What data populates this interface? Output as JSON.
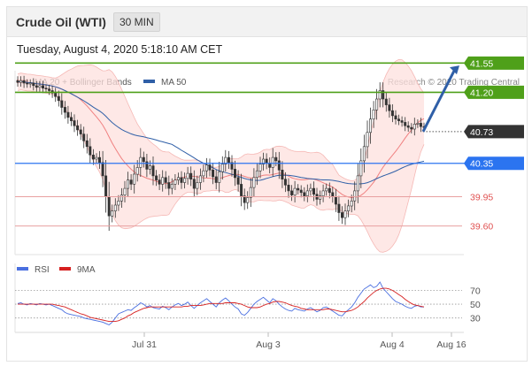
{
  "header": {
    "title": "Crude Oil (WTI)",
    "timeframe": "30 MIN"
  },
  "timestamp": "Tuesday, August 4, 2020 5:18:10 AM CET",
  "colors": {
    "ma20": "#f08080",
    "ma50": "#2f5fa7",
    "band_fill": "#fde0de",
    "resistance": "#4fa01a",
    "support_current": "#2b74f0",
    "support": "#e05252",
    "price_tag": "#333333",
    "candle": "#333333",
    "rsi": "#4a6fe0",
    "ma9": "#d62020",
    "arrow": "#2f5fa7"
  },
  "legend": [
    {
      "label": "MA 20 + Bollinger Bands",
      "color_key": "ma20"
    },
    {
      "label": "MA 50",
      "color_key": "ma50"
    }
  ],
  "credit": "Research © 2020 Trading Central",
  "rsi_legend": [
    {
      "label": "RSI",
      "color_key": "rsi"
    },
    {
      "label": "9MA",
      "color_key": "ma9"
    }
  ],
  "chart_data": {
    "type": "candlestick",
    "x_ticks": [
      "Jul 31",
      "Aug 3",
      "Aug 4",
      "Aug 16"
    ],
    "ylim": [
      39.1,
      41.67
    ],
    "levels": [
      {
        "label": "41.55",
        "value": 41.55,
        "kind": "resistance"
      },
      {
        "label": "41.20",
        "value": 41.2,
        "kind": "resistance"
      },
      {
        "label": "40.73",
        "value": 40.73,
        "kind": "current"
      },
      {
        "label": "40.35",
        "value": 40.35,
        "kind": "support_current"
      },
      {
        "label": "39.95",
        "value": 39.95,
        "kind": "support"
      },
      {
        "label": "39.60",
        "value": 39.6,
        "kind": "support"
      }
    ],
    "closes": [
      41.32,
      41.34,
      41.31,
      41.3,
      41.31,
      41.28,
      41.26,
      41.28,
      41.25,
      41.24,
      41.22,
      41.19,
      41.15,
      41.1,
      41.02,
      40.96,
      40.9,
      40.86,
      40.8,
      40.75,
      40.7,
      40.62,
      40.55,
      40.45,
      40.4,
      40.42,
      40.36,
      40.2,
      39.95,
      39.72,
      39.78,
      39.85,
      39.9,
      39.97,
      40.05,
      40.15,
      40.1,
      40.22,
      40.3,
      40.42,
      40.37,
      40.28,
      40.32,
      40.2,
      40.15,
      40.1,
      40.18,
      40.12,
      40.05,
      40.1,
      40.15,
      40.18,
      40.12,
      40.17,
      40.23,
      40.16,
      40.05,
      40.12,
      40.2,
      40.26,
      40.33,
      40.27,
      40.19,
      40.12,
      40.25,
      40.34,
      40.42,
      40.36,
      40.28,
      40.18,
      40.1,
      39.96,
      39.88,
      39.94,
      40.06,
      40.18,
      40.26,
      40.34,
      40.4,
      40.35,
      40.3,
      40.42,
      40.38,
      40.27,
      40.16,
      40.09,
      40.02,
      39.97,
      40.05,
      40.03,
      40.0,
      39.96,
      40.02,
      40.05,
      39.98,
      39.92,
      39.96,
      40.02,
      40.05,
      40.0,
      39.95,
      39.86,
      39.76,
      39.7,
      39.78,
      39.84,
      39.9,
      40.02,
      40.2,
      40.38,
      40.55,
      40.72,
      40.88,
      40.99,
      41.12,
      41.22,
      41.12,
      41.05,
      40.98,
      40.92,
      40.88,
      40.86,
      40.84,
      40.8,
      40.78,
      40.76,
      40.82,
      40.83,
      40.79,
      40.78
    ],
    "rsi": {
      "levels": [
        70,
        50,
        30
      ],
      "ylim": [
        14,
        86
      ],
      "rsi": [
        51,
        52,
        50,
        49,
        51,
        50,
        49,
        51,
        50,
        49,
        50,
        48,
        46,
        44,
        42,
        38,
        36,
        35,
        34,
        33,
        32,
        30,
        29,
        28,
        27,
        26,
        25,
        24,
        22,
        20,
        24,
        30,
        36,
        38,
        40,
        42,
        41,
        45,
        48,
        52,
        50,
        46,
        48,
        45,
        44,
        43,
        47,
        45,
        42,
        46,
        49,
        51,
        48,
        50,
        53,
        48,
        44,
        48,
        52,
        55,
        58,
        54,
        50,
        46,
        52,
        56,
        59,
        55,
        50,
        46,
        43,
        36,
        34,
        38,
        44,
        50,
        54,
        57,
        60,
        56,
        52,
        58,
        55,
        50,
        46,
        43,
        41,
        40,
        44,
        42,
        41,
        40,
        43,
        45,
        42,
        39,
        41,
        45,
        46,
        43,
        40,
        37,
        34,
        33,
        38,
        42,
        46,
        52,
        60,
        66,
        72,
        75,
        78,
        74,
        76,
        82,
        73,
        68,
        63,
        58,
        54,
        52,
        50,
        47,
        45,
        44,
        47,
        48,
        46,
        46
      ],
      "ma9": [
        50,
        50,
        50,
        50,
        50,
        50,
        50,
        50,
        50,
        50,
        50,
        50,
        49,
        48,
        47,
        46,
        44,
        42,
        40,
        38,
        36,
        35,
        33,
        31,
        30,
        29,
        28,
        27,
        26,
        25,
        25,
        25,
        26,
        28,
        30,
        33,
        35,
        38,
        40,
        42,
        44,
        45,
        46,
        46,
        46,
        46,
        46,
        46,
        46,
        46,
        46,
        46,
        46,
        47,
        47,
        48,
        48,
        48,
        48,
        49,
        50,
        51,
        51,
        51,
        51,
        51,
        52,
        52,
        52,
        52,
        51,
        50,
        48,
        46,
        45,
        45,
        45,
        46,
        48,
        50,
        51,
        53,
        54,
        54,
        53,
        52,
        50,
        48,
        47,
        46,
        44,
        43,
        42,
        42,
        42,
        42,
        42,
        42,
        43,
        43,
        42,
        41,
        40,
        39,
        39,
        40,
        41,
        43,
        46,
        50,
        54,
        59,
        63,
        67,
        70,
        72,
        73,
        73,
        72,
        70,
        67,
        64,
        61,
        57,
        54,
        51,
        49,
        48,
        47,
        46
      ]
    }
  }
}
